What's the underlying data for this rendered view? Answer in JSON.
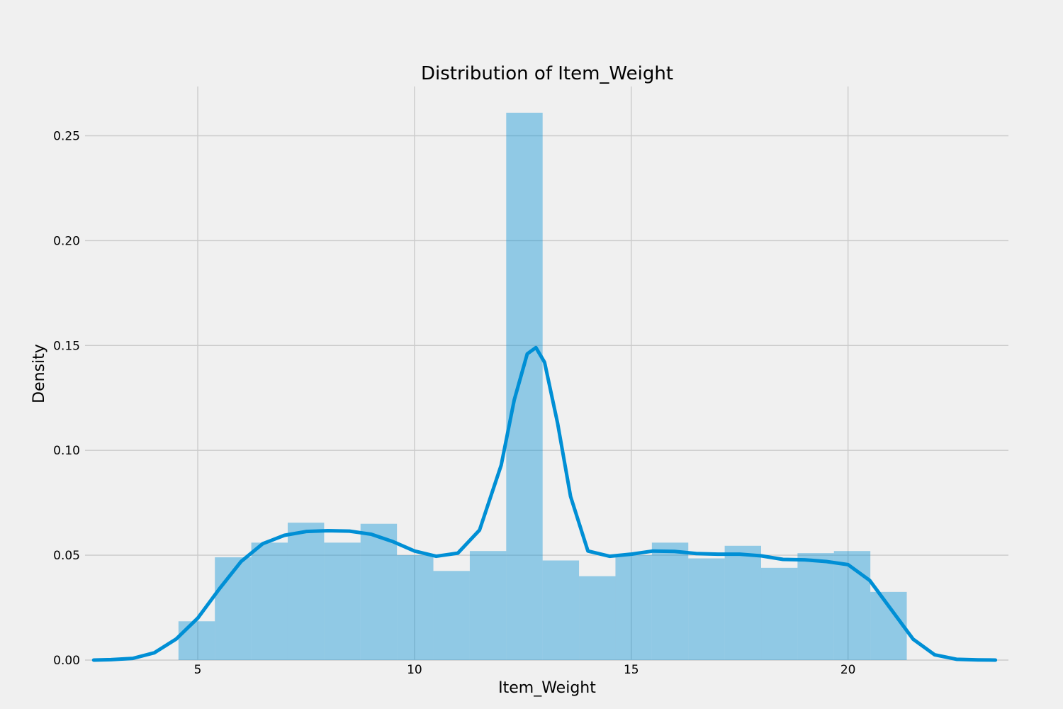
{
  "chart_data": {
    "type": "bar",
    "title": "Distribution of Item_Weight",
    "xlabel": "Item_Weight",
    "ylabel": "Density",
    "xlim": [
      2.4,
      23.7
    ],
    "ylim": [
      0,
      0.2735
    ],
    "grid": true,
    "x_ticks": [
      5,
      10,
      15,
      20
    ],
    "x_tick_labels": [
      "5",
      "10",
      "15",
      "20"
    ],
    "y_ticks": [
      0.0,
      0.05,
      0.1,
      0.15,
      0.2,
      0.25
    ],
    "y_tick_labels": [
      "0.00",
      "0.05",
      "0.10",
      "0.15",
      "0.20",
      "0.25"
    ],
    "histogram": {
      "bin_edges": [
        4.555,
        5.395,
        6.235,
        7.075,
        7.915,
        8.755,
        9.595,
        10.435,
        11.275,
        12.115,
        12.955,
        13.795,
        14.635,
        15.475,
        16.315,
        17.155,
        17.995,
        18.835,
        19.675,
        20.515,
        21.355
      ],
      "density": [
        0.0185,
        0.049,
        0.056,
        0.0655,
        0.056,
        0.065,
        0.05,
        0.0425,
        0.052,
        0.261,
        0.0475,
        0.04,
        0.05,
        0.056,
        0.0485,
        0.0545,
        0.044,
        0.051,
        0.052,
        0.0325
      ]
    },
    "kde": {
      "x": [
        2.6,
        3.0,
        3.5,
        4.0,
        4.5,
        5.0,
        5.5,
        6.0,
        6.5,
        7.0,
        7.5,
        8.0,
        8.5,
        9.0,
        9.5,
        10.0,
        10.5,
        11.0,
        11.5,
        12.0,
        12.3,
        12.6,
        12.8,
        13.0,
        13.3,
        13.6,
        14.0,
        14.5,
        15.0,
        15.5,
        16.0,
        16.5,
        17.0,
        17.5,
        18.0,
        18.5,
        19.0,
        19.5,
        20.0,
        20.5,
        21.0,
        21.5,
        22.0,
        22.5,
        23.0,
        23.4
      ],
      "y": [
        0.0,
        0.0002,
        0.0008,
        0.0035,
        0.01,
        0.02,
        0.034,
        0.047,
        0.0555,
        0.0595,
        0.0613,
        0.0617,
        0.0615,
        0.06,
        0.0565,
        0.052,
        0.0495,
        0.051,
        0.062,
        0.093,
        0.124,
        0.146,
        0.149,
        0.142,
        0.113,
        0.078,
        0.052,
        0.0495,
        0.0505,
        0.052,
        0.0518,
        0.0508,
        0.0505,
        0.0505,
        0.0497,
        0.048,
        0.0478,
        0.047,
        0.0455,
        0.038,
        0.024,
        0.01,
        0.0025,
        0.0004,
        0.0001,
        0.0
      ]
    }
  }
}
